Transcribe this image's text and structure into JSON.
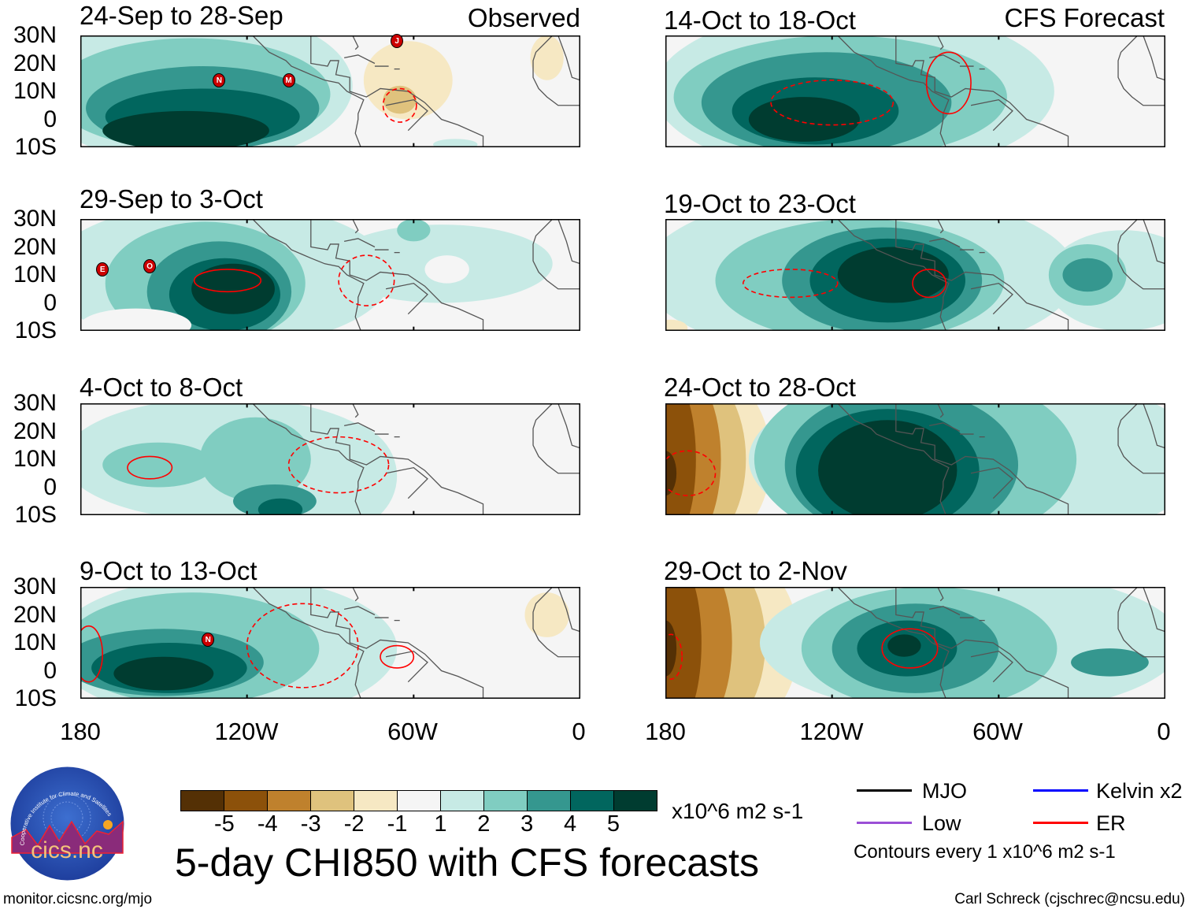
{
  "colors": {
    "scale": [
      "#543005",
      "#8c510a",
      "#bf812d",
      "#dfc27d",
      "#f6e8c3",
      "#f5f5f5",
      "#c7eae5",
      "#80cdc1",
      "#35978f",
      "#01665e",
      "#003c30"
    ],
    "coast": "#555555",
    "er": "#ff0000",
    "mjo": "#000000",
    "kelvin": "#0000ff",
    "low": "#9b4fd6",
    "storm": "#cc0000"
  },
  "columns": {
    "left_label": "Observed",
    "right_label": "CFS Forecast"
  },
  "panels": [
    {
      "title": "24-Sep to 28-Sep",
      "storms": [
        {
          "letter": "N",
          "lon": -130,
          "lat": 14
        },
        {
          "letter": "M",
          "lon": -105,
          "lat": 14
        },
        {
          "letter": "J",
          "lon": -66,
          "lat": 28
        }
      ]
    },
    {
      "title": "29-Sep to 3-Oct",
      "storms": [
        {
          "letter": "E",
          "lon": -172,
          "lat": 12
        },
        {
          "letter": "O",
          "lon": -155,
          "lat": 13
        }
      ]
    },
    {
      "title": "4-Oct to 8-Oct",
      "storms": []
    },
    {
      "title": "9-Oct to 13-Oct",
      "storms": [
        {
          "letter": "N",
          "lon": -134,
          "lat": 11
        }
      ]
    },
    {
      "title": "14-Oct to 18-Oct",
      "storms": []
    },
    {
      "title": "19-Oct to 23-Oct",
      "storms": []
    },
    {
      "title": "24-Oct to 28-Oct",
      "storms": []
    },
    {
      "title": "29-Oct to 2-Nov",
      "storms": []
    }
  ],
  "lat_labels": [
    "30N",
    "20N",
    "10N",
    "0",
    "10S"
  ],
  "lon_labels": [
    "180",
    "120W",
    "60W",
    "0"
  ],
  "colorbar": {
    "labels": [
      "-5",
      "-4",
      "-3",
      "-2",
      "-1",
      "1",
      "2",
      "3",
      "4",
      "5"
    ],
    "units": "x10^6 m2 s-1"
  },
  "title": "5-day CHI850 with CFS forecasts",
  "legend": {
    "mjo": "MJO",
    "kelvin": "Kelvin x2",
    "low": "Low",
    "er": "ER",
    "contours": "Contours every 1 x10^6 m2 s-1"
  },
  "logo": {
    "text": "cics.nc",
    "ring": "Cooperative Institute for Climate and Satellites"
  },
  "footer": {
    "left": "monitor.cicsnc.org/mjo",
    "right": "Carl Schreck (cjschrec@ncsu.edu)"
  }
}
